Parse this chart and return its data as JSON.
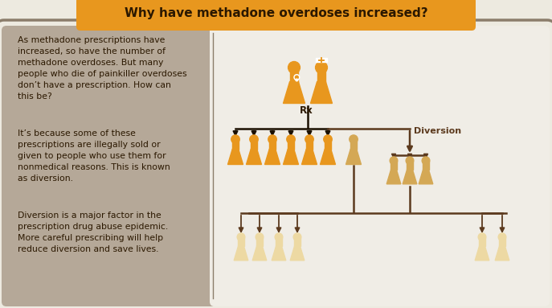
{
  "title": "Why have methadone overdoses increased?",
  "title_bg": "#E8971E",
  "title_color": "#2B1800",
  "main_bg": "#EDEAE0",
  "left_bg": "#B5A898",
  "right_bg": "#EDEAE0",
  "border_color": "#8B7D6B",
  "left_text_1": "As methadone prescriptions have\nincreased, so have the number of\nmethadone overdoses. But many\npeople who die of painkiller overdoses\ndon’t have a prescription. How can\nthis be?",
  "left_text_2": "It’s because some of these\nprescriptions are illegally sold or\ngiven to people who use them for\nnonmedical reasons. This is known\nas diversion.",
  "left_text_3": "Diversion is a major factor in the\nprescription drug abuse epidemic.\nMore careful prescribing will help\nreduce diversion and save lives.",
  "text_color": "#2B1800",
  "orange": "#E8971E",
  "tan": "#D4A855",
  "cream": "#EDD9A3",
  "arrow_dark": "#1A0F00",
  "arrow_brown": "#5C3A1E",
  "rx_label": "Rx",
  "diversion_label": "Diversion"
}
